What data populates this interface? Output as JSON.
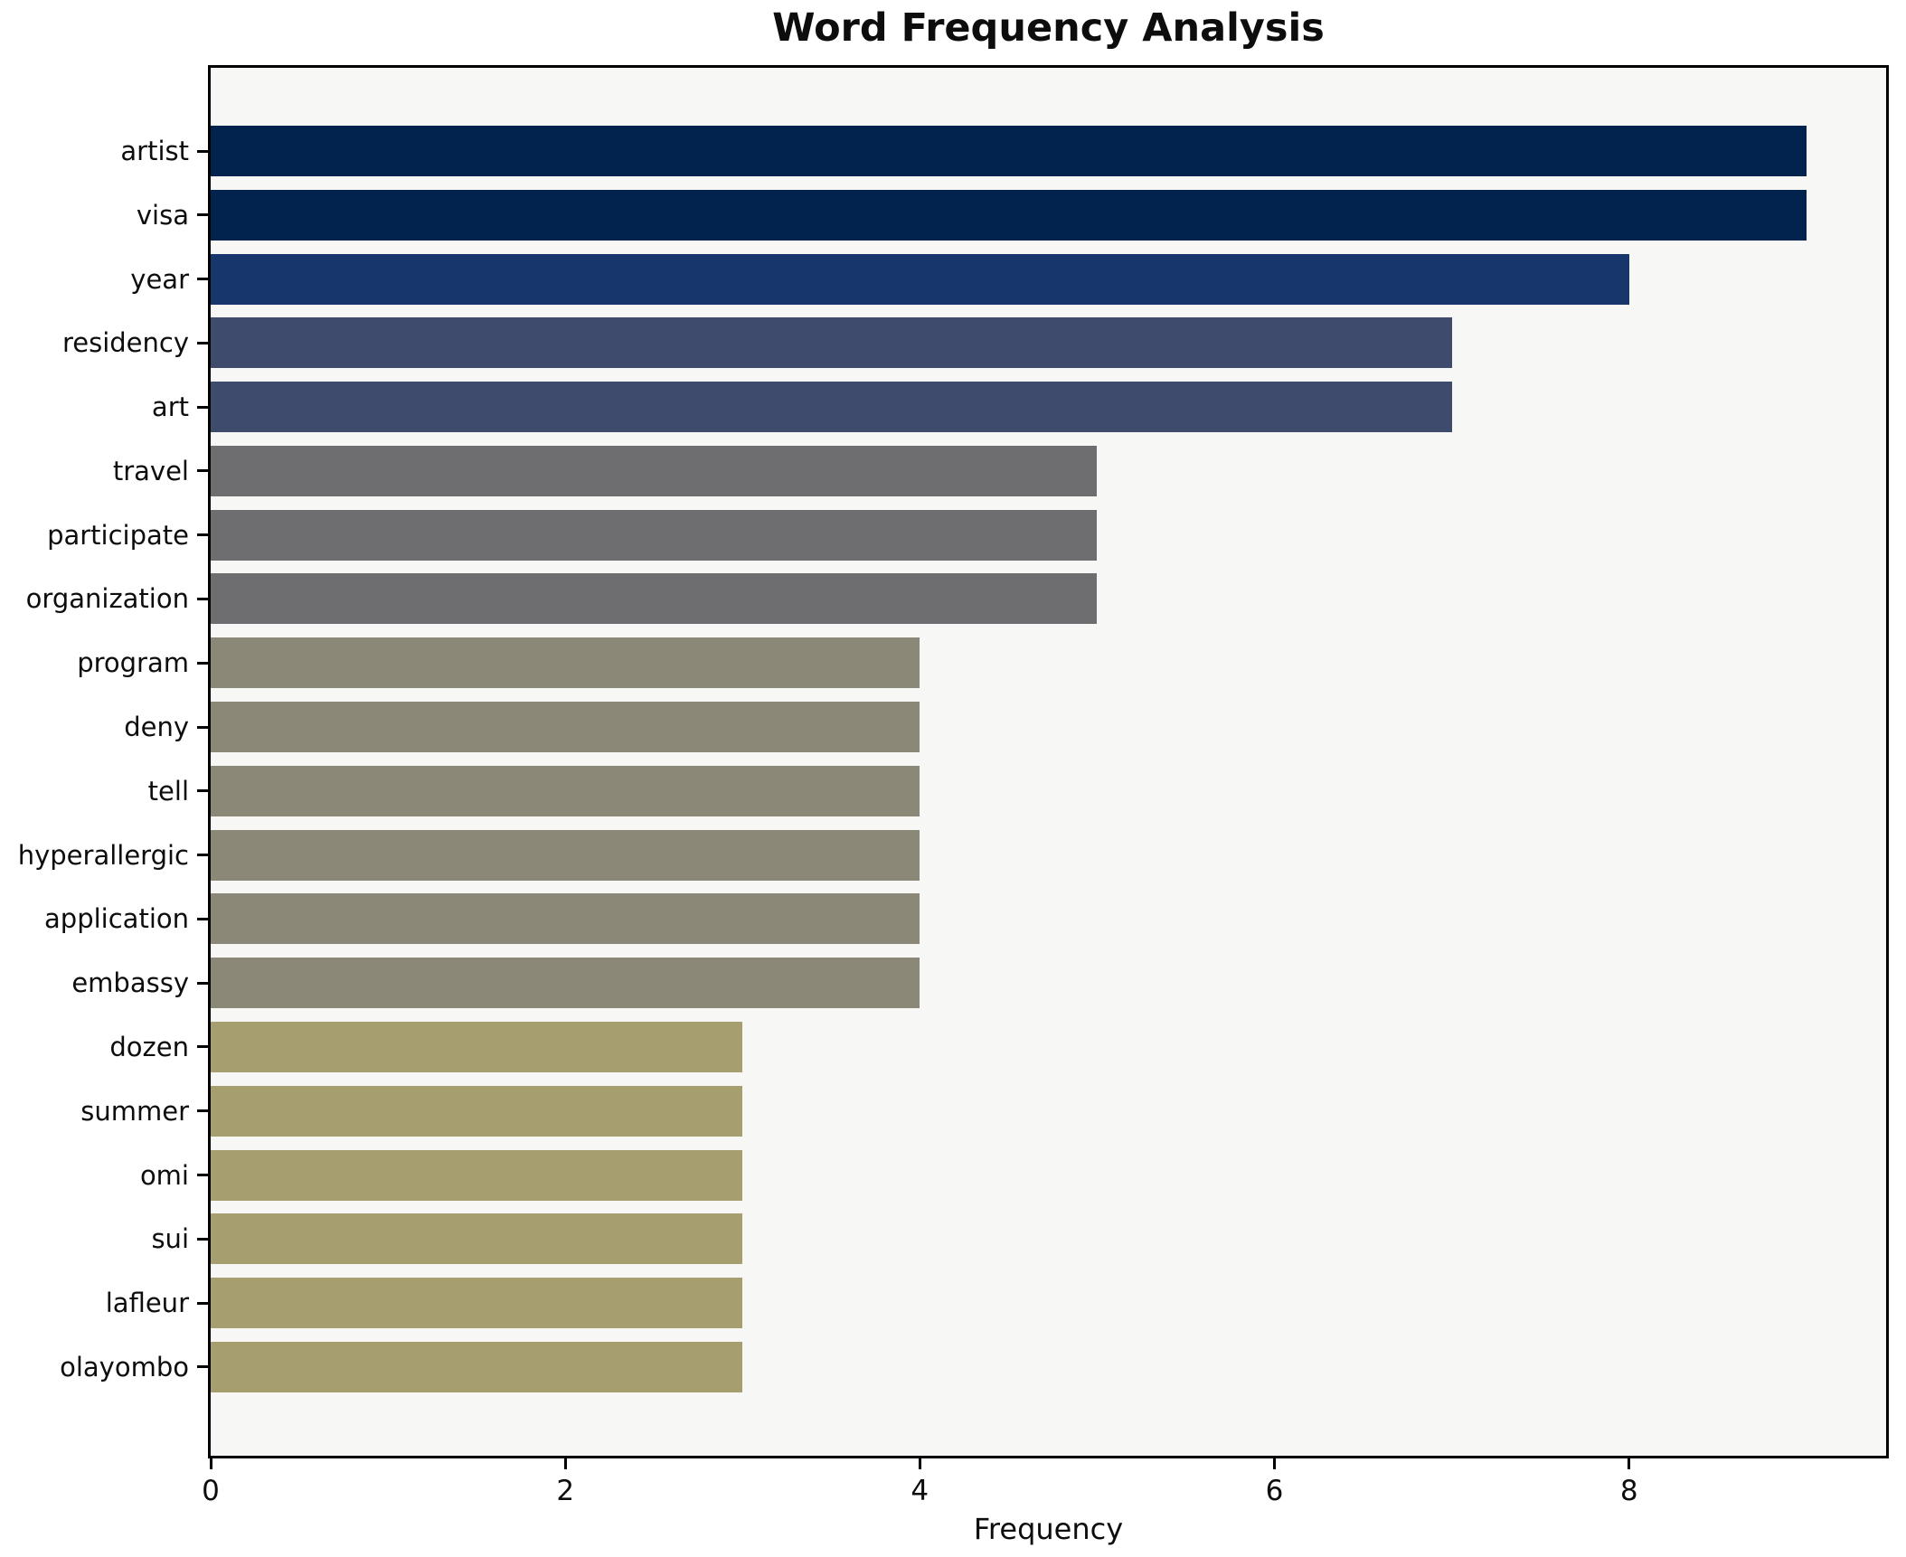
{
  "title": "Word Frequency Analysis",
  "chart_data": {
    "type": "bar",
    "orientation": "horizontal",
    "title": "Word Frequency Analysis",
    "xlabel": "Frequency",
    "ylabel": "",
    "categories": [
      "artist",
      "visa",
      "year",
      "residency",
      "art",
      "travel",
      "participate",
      "organization",
      "program",
      "deny",
      "tell",
      "hyperallergic",
      "application",
      "embassy",
      "dozen",
      "summer",
      "omi",
      "sui",
      "lafleur",
      "olayombo"
    ],
    "values": [
      9,
      9,
      8,
      7,
      7,
      5,
      5,
      5,
      4,
      4,
      4,
      4,
      4,
      4,
      3,
      3,
      3,
      3,
      3,
      3
    ],
    "bar_colors": [
      "#02234e",
      "#02234e",
      "#17366c",
      "#3e4b6c",
      "#3e4b6c",
      "#6e6e70",
      "#6e6e70",
      "#6e6e70",
      "#8b8878",
      "#8b8878",
      "#8b8878",
      "#8b8878",
      "#8b8878",
      "#8b8878",
      "#a69e6e",
      "#a69e6e",
      "#a69e6e",
      "#a69e6e",
      "#a69e6e",
      "#a69e6e"
    ],
    "xlim": [
      0,
      9.45
    ],
    "xticks": [
      "0",
      "2",
      "4",
      "6",
      "8"
    ],
    "grid": false,
    "legend": null,
    "colors": {
      "figure_background": "#ffffff",
      "axes_background": "#f7f7f6",
      "spine": "#000000",
      "text": "#0d0d0d"
    }
  }
}
